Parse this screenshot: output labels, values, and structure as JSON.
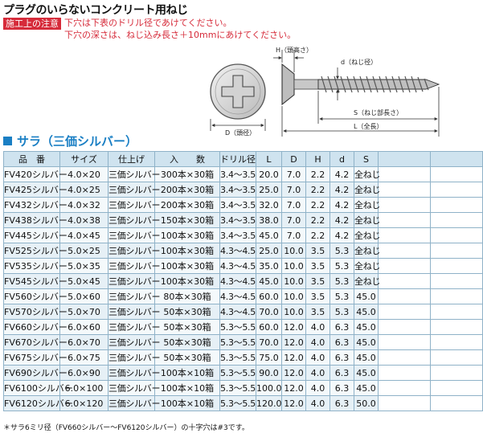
{
  "header": {
    "title": "プラグのいらないコンクリート用ねじ",
    "notice_label": "施工上の注意",
    "notice_line1": "下穴は下表のドリル径であけてください。",
    "notice_line2": "下穴の深さは、ねじ込み長さ＋10mmにあけてください。"
  },
  "diagram": {
    "label_h": "H（頭高さ）",
    "label_d_small": "d（ねじ径）",
    "label_s": "S（ねじ部長さ）",
    "label_l": "L（全長）",
    "label_d": "D（頭径）"
  },
  "section_title": "サラ（三価シルバー）",
  "table": {
    "columns": [
      "品　番",
      "サイズ",
      "仕上げ",
      "入　　数",
      "ドリル径",
      "L",
      "D",
      "H",
      "d",
      "S",
      "",
      ""
    ],
    "rows": [
      [
        "FV420シルバー",
        "4.0×20",
        "三価シルバー",
        "300本×30箱",
        "3.4～3.5",
        "20.0",
        "7.0",
        "2.2",
        "4.2",
        "全ねじ"
      ],
      [
        "FV425シルバー",
        "4.0×25",
        "三価シルバー",
        "200本×30箱",
        "3.4～3.5",
        "25.0",
        "7.0",
        "2.2",
        "4.2",
        "全ねじ"
      ],
      [
        "FV432シルバー",
        "4.0×32",
        "三価シルバー",
        "200本×30箱",
        "3.4～3.5",
        "32.0",
        "7.0",
        "2.2",
        "4.2",
        "全ねじ"
      ],
      [
        "FV438シルバー",
        "4.0×38",
        "三価シルバー",
        "150本×30箱",
        "3.4～3.5",
        "38.0",
        "7.0",
        "2.2",
        "4.2",
        "全ねじ"
      ],
      [
        "FV445シルバー",
        "4.0×45",
        "三価シルバー",
        "100本×30箱",
        "3.4～3.5",
        "45.0",
        "7.0",
        "2.2",
        "4.2",
        "全ねじ"
      ],
      [
        "FV525シルバー",
        "5.0×25",
        "三価シルバー",
        "100本×30箱",
        "4.3～4.5",
        "25.0",
        "10.0",
        "3.5",
        "5.3",
        "全ねじ"
      ],
      [
        "FV535シルバー",
        "5.0×35",
        "三価シルバー",
        "100本×30箱",
        "4.3～4.5",
        "35.0",
        "10.0",
        "3.5",
        "5.3",
        "全ねじ"
      ],
      [
        "FV545シルバー",
        "5.0×45",
        "三価シルバー",
        "100本×30箱",
        "4.3～4.5",
        "45.0",
        "10.0",
        "3.5",
        "5.3",
        "全ねじ"
      ],
      [
        "FV560シルバー",
        "5.0×60",
        "三価シルバー",
        "80本×30箱",
        "4.3～4.5",
        "60.0",
        "10.0",
        "3.5",
        "5.3",
        "45.0"
      ],
      [
        "FV570シルバー",
        "5.0×70",
        "三価シルバー",
        "50本×30箱",
        "4.3～4.5",
        "70.0",
        "10.0",
        "3.5",
        "5.3",
        "45.0"
      ],
      [
        "FV660シルバー",
        "6.0×60",
        "三価シルバー",
        "50本×30箱",
        "5.3～5.5",
        "60.0",
        "12.0",
        "4.0",
        "6.3",
        "45.0"
      ],
      [
        "FV670シルバー",
        "6.0×70",
        "三価シルバー",
        "50本×30箱",
        "5.3～5.5",
        "70.0",
        "12.0",
        "4.0",
        "6.3",
        "45.0"
      ],
      [
        "FV675シルバー",
        "6.0×75",
        "三価シルバー",
        "50本×30箱",
        "5.3～5.5",
        "75.0",
        "12.0",
        "4.0",
        "6.3",
        "45.0"
      ],
      [
        "FV690シルバー",
        "6.0×90",
        "三価シルバー",
        "100本×10箱",
        "5.3～5.5",
        "90.0",
        "12.0",
        "4.0",
        "6.3",
        "45.0"
      ],
      [
        "FV6100シルバー",
        "6.0×100",
        "三価シルバー",
        "100本×10箱",
        "5.3～5.5",
        "100.0",
        "12.0",
        "4.0",
        "6.3",
        "45.0"
      ],
      [
        "FV6120シルバー",
        "6.0×120",
        "三価シルバー",
        "100本×10箱",
        "5.3～5.5",
        "120.0",
        "12.0",
        "4.0",
        "6.3",
        "50.0"
      ]
    ]
  },
  "footnote": "＊サラ6ミリ径（FV660シルバー～FV6120シルバー）の十字穴は#3です。",
  "colors": {
    "accent_blue": "#1a7fc4",
    "notice_red": "#d62b3a",
    "header_fill": "#cfe3ef",
    "row_fill": "#f4f9fb",
    "row_fill_alt": "#e6f0f6",
    "grid": "#8fb2c8"
  }
}
